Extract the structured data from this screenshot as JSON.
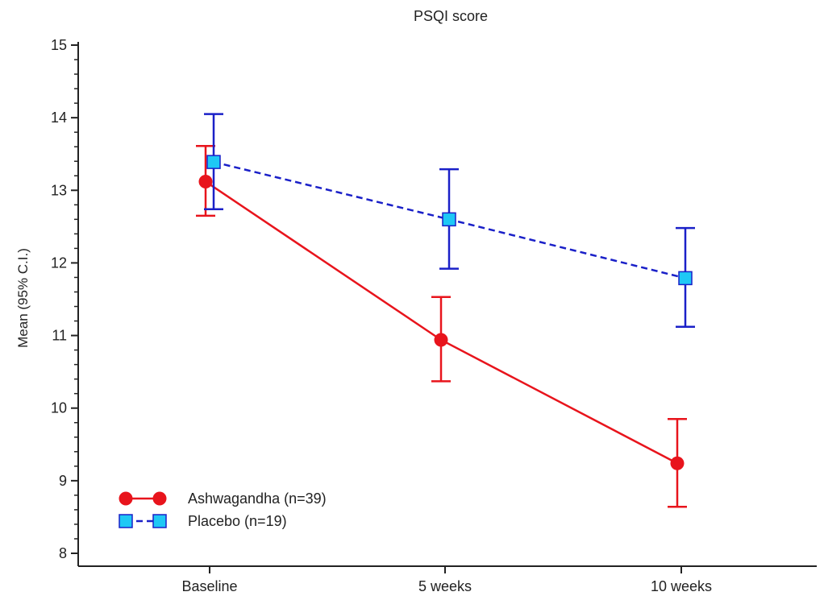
{
  "chart_data": {
    "type": "line",
    "title": "PSQI score",
    "xlabel": "",
    "ylabel": "Mean (95% C.I.)",
    "categories": [
      "Baseline",
      "5 weeks",
      "10 weeks"
    ],
    "ylim": [
      8,
      15
    ],
    "yticks": [
      8,
      9,
      10,
      11,
      12,
      13,
      14,
      15
    ],
    "grid": false,
    "legend_position": "bottom-left",
    "series": [
      {
        "name": "Ashwagandha (n=39)",
        "color": "#e8141c",
        "marker": "circle",
        "line_style": "solid",
        "values": [
          13.12,
          10.94,
          9.24
        ],
        "ci_low": [
          12.65,
          10.37,
          8.64
        ],
        "ci_high": [
          13.61,
          11.53,
          9.85
        ]
      },
      {
        "name": "Placebo (n=19)",
        "color": "#1a20c8",
        "marker_fill": "#1ec8f5",
        "marker": "square",
        "line_style": "dashed",
        "values": [
          13.39,
          12.6,
          11.79
        ],
        "ci_low": [
          12.74,
          11.92,
          11.12
        ],
        "ci_high": [
          14.05,
          13.29,
          12.48
        ]
      }
    ]
  }
}
